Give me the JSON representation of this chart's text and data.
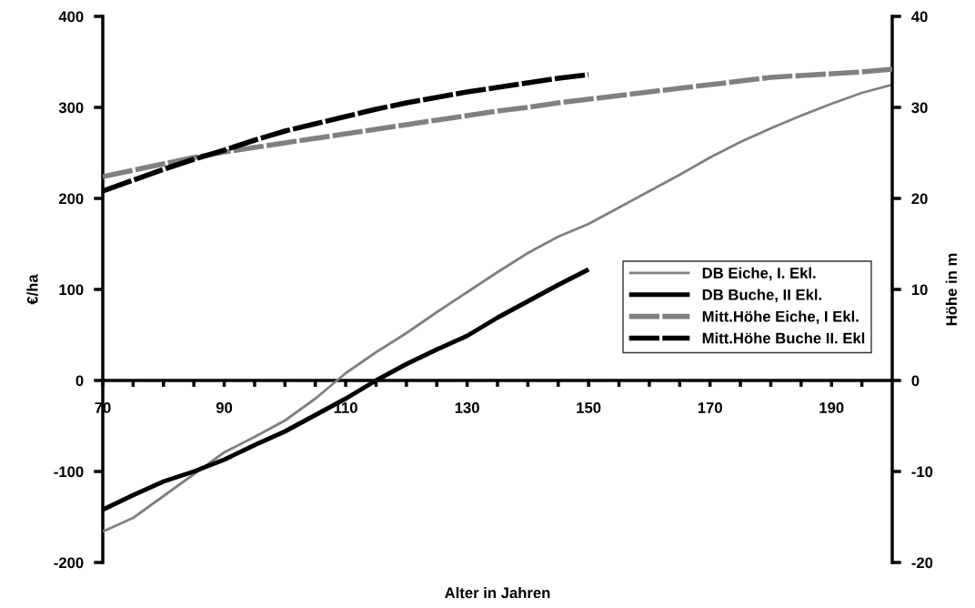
{
  "chart_data": {
    "type": "line",
    "xlabel": "Alter in Jahren",
    "ylabel": "€/ha",
    "y2label": "Höhe in m",
    "x": [
      70,
      75,
      80,
      85,
      90,
      95,
      100,
      105,
      110,
      115,
      120,
      125,
      130,
      135,
      140,
      145,
      150,
      155,
      160,
      165,
      170,
      175,
      180,
      185,
      190,
      195,
      200
    ],
    "series": [
      {
        "name": "DB Eiche, I. Ekl.",
        "color": "#808080",
        "line_style": "solid",
        "values": [
          -166,
          -151,
          -127,
          -103,
          -79,
          -62,
          -44,
          -20,
          8,
          31,
          52,
          75,
          97,
          119,
          140,
          158,
          172,
          190,
          208,
          226,
          245,
          262,
          277,
          291,
          304,
          316,
          325
        ]
      },
      {
        "name": "DB Buche, II Ekl.",
        "color": "#000000",
        "line_style": "solid",
        "values": [
          -142,
          -126,
          -111,
          -100,
          -87,
          -71,
          -56,
          -38,
          -20,
          0,
          18,
          34,
          49,
          69,
          87,
          105,
          122,
          null,
          null,
          null,
          null,
          null,
          null,
          null,
          null,
          null,
          null
        ]
      },
      {
        "name": "Mitt.Höhe Eiche, I Ekl.",
        "color": "#808080",
        "line_style": "dashed",
        "axis": "y2",
        "values": [
          22.4,
          23.1,
          23.8,
          24.5,
          25.1,
          25.6,
          26.1,
          26.6,
          27.1,
          27.6,
          28.1,
          28.6,
          29.1,
          29.6,
          30.0,
          30.5,
          30.9,
          31.3,
          31.7,
          32.1,
          32.5,
          32.9,
          33.3,
          33.5,
          33.7,
          33.9,
          34.2
        ]
      },
      {
        "name": "Mitt.Höhe Buche II. Ekl",
        "color": "#000000",
        "line_style": "dashed",
        "axis": "y2",
        "values": [
          20.8,
          22.0,
          23.2,
          24.3,
          25.3,
          26.4,
          27.4,
          28.2,
          29.0,
          29.8,
          30.5,
          31.1,
          31.7,
          32.2,
          32.7,
          33.2,
          33.6,
          null,
          null,
          null,
          null,
          null,
          null,
          null,
          null,
          null,
          null
        ]
      }
    ],
    "xlim": [
      70,
      200
    ],
    "xticks": [
      70,
      {
        "value": 75,
        "label": null
      },
      {
        "value": 80,
        "label": null
      },
      {
        "value": 85,
        "label": null
      },
      90,
      {
        "value": 95,
        "label": null
      },
      {
        "value": 100,
        "label": null
      },
      {
        "value": 105,
        "label": null
      },
      110,
      {
        "value": 115,
        "label": null
      },
      {
        "value": 120,
        "label": null
      },
      {
        "value": 125,
        "label": null
      },
      130,
      {
        "value": 135,
        "label": null
      },
      {
        "value": 140,
        "label": null
      },
      {
        "value": 145,
        "label": null
      },
      150,
      {
        "value": 155,
        "label": null
      },
      {
        "value": 160,
        "label": null
      },
      {
        "value": 165,
        "label": null
      },
      170,
      {
        "value": 175,
        "label": null
      },
      {
        "value": 180,
        "label": null
      },
      {
        "value": 185,
        "label": null
      },
      190,
      {
        "value": 195,
        "label": null
      }
    ],
    "ylim": [
      -200,
      400
    ],
    "yticks": [
      -200,
      -100,
      0,
      100,
      200,
      300,
      400
    ],
    "y2lim": [
      -20,
      40
    ],
    "y2ticks": [
      -20,
      -10,
      0,
      10,
      20,
      30,
      40
    ],
    "grid": false,
    "legend": "right",
    "marker": "none"
  }
}
